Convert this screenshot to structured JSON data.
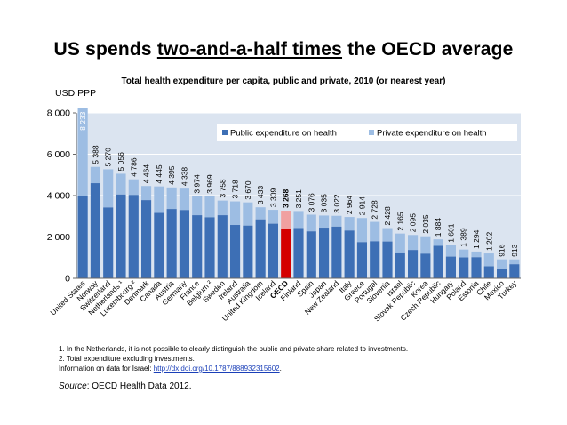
{
  "headline": {
    "pre": "US spends ",
    "emph": "two-and-a-half times",
    "post": " the OECD average"
  },
  "chart_data": {
    "type": "bar",
    "stacked": true,
    "title": "Total health expenditure per capita, public and private, 2010 (or nearest year)",
    "ylabel": "USD PPP",
    "ylim": [
      0,
      8000
    ],
    "yticks": [
      0,
      2000,
      4000,
      6000,
      8000
    ],
    "ytick_labels": [
      "0",
      "2 000",
      "4 000",
      "6 000",
      "8 000"
    ],
    "grid": true,
    "legend_position": "top-right",
    "categories": [
      "United States",
      "Norway",
      "Switzerland",
      "Netherlands ¹",
      "Luxembourg ²",
      "Denmark",
      "Canada",
      "Austria",
      "Germany",
      "France",
      "Belgium ²",
      "Sweden",
      "Ireland",
      "Australia",
      "United Kingdom",
      "Iceland",
      "OECD",
      "Finland",
      "Spain",
      "Japan",
      "New Zealand",
      "Italy",
      "Greece",
      "Portugal",
      "Slovenia",
      "Israel",
      "Slovak Republic",
      "Korea",
      "Czech Republic",
      "Hungary",
      "Poland",
      "Estonia",
      "Chile",
      "Mexico",
      "Turkey"
    ],
    "totals": [
      8233,
      5388,
      5270,
      5056,
      4786,
      4464,
      4445,
      4395,
      4338,
      3974,
      3969,
      3758,
      3718,
      3670,
      3433,
      3309,
      3268,
      3251,
      3076,
      3035,
      3022,
      2964,
      2914,
      2728,
      2428,
      2165,
      2095,
      2035,
      1884,
      1601,
      1389,
      1294,
      1202,
      916,
      913
    ],
    "total_labels": [
      "8 233",
      "5 388",
      "5 270",
      "5 056",
      "4 786",
      "4 464",
      "4 445",
      "4 395",
      "4 338",
      "3 974",
      "3 969",
      "3 758",
      "3 718",
      "3 670",
      "3 433",
      "3 309",
      "3 268",
      "3 251",
      "3 076",
      "3 035",
      "3 022",
      "2 964",
      "2 914",
      "2 728",
      "2 428",
      "2 165",
      "2 095",
      "2 035",
      "1 884",
      "1 601",
      "1 389",
      "1 294",
      "1 202",
      "916",
      "913"
    ],
    "series": [
      {
        "name": "Public expenditure on health",
        "color": "#3d6fb5",
        "values": [
          3967,
          4600,
          3424,
          4050,
          4031,
          3780,
          3160,
          3350,
          3300,
          3050,
          2950,
          3050,
          2580,
          2550,
          2850,
          2640,
          2400,
          2430,
          2270,
          2450,
          2500,
          2310,
          1750,
          1790,
          1780,
          1250,
          1370,
          1190,
          1570,
          1050,
          1010,
          1020,
          580,
          450,
          680
        ]
      },
      {
        "name": "Private expenditure on health",
        "color": "#9dbde3",
        "values": [
          4266,
          788,
          1846,
          1006,
          755,
          684,
          1285,
          1045,
          1038,
          924,
          1019,
          708,
          1138,
          1120,
          583,
          669,
          868,
          821,
          806,
          585,
          522,
          654,
          1164,
          938,
          648,
          915,
          725,
          845,
          314,
          551,
          379,
          274,
          622,
          466,
          233
        ]
      }
    ],
    "highlight": {
      "category": "OECD",
      "public_color": "#d40000",
      "private_color": "#f0a0a0"
    },
    "footnotes": [
      "1. In the Netherlands, it is not possible to clearly distinguish the public and private share related to investments.",
      "2. Total expenditure excluding investments."
    ],
    "info_text": "Information on data for Israel: ",
    "info_link": "http://dx.doi.org/10.1787/888932315602",
    "info_end": ".",
    "source_label": "Source",
    "source_text": ": OECD Health Data 2012."
  }
}
